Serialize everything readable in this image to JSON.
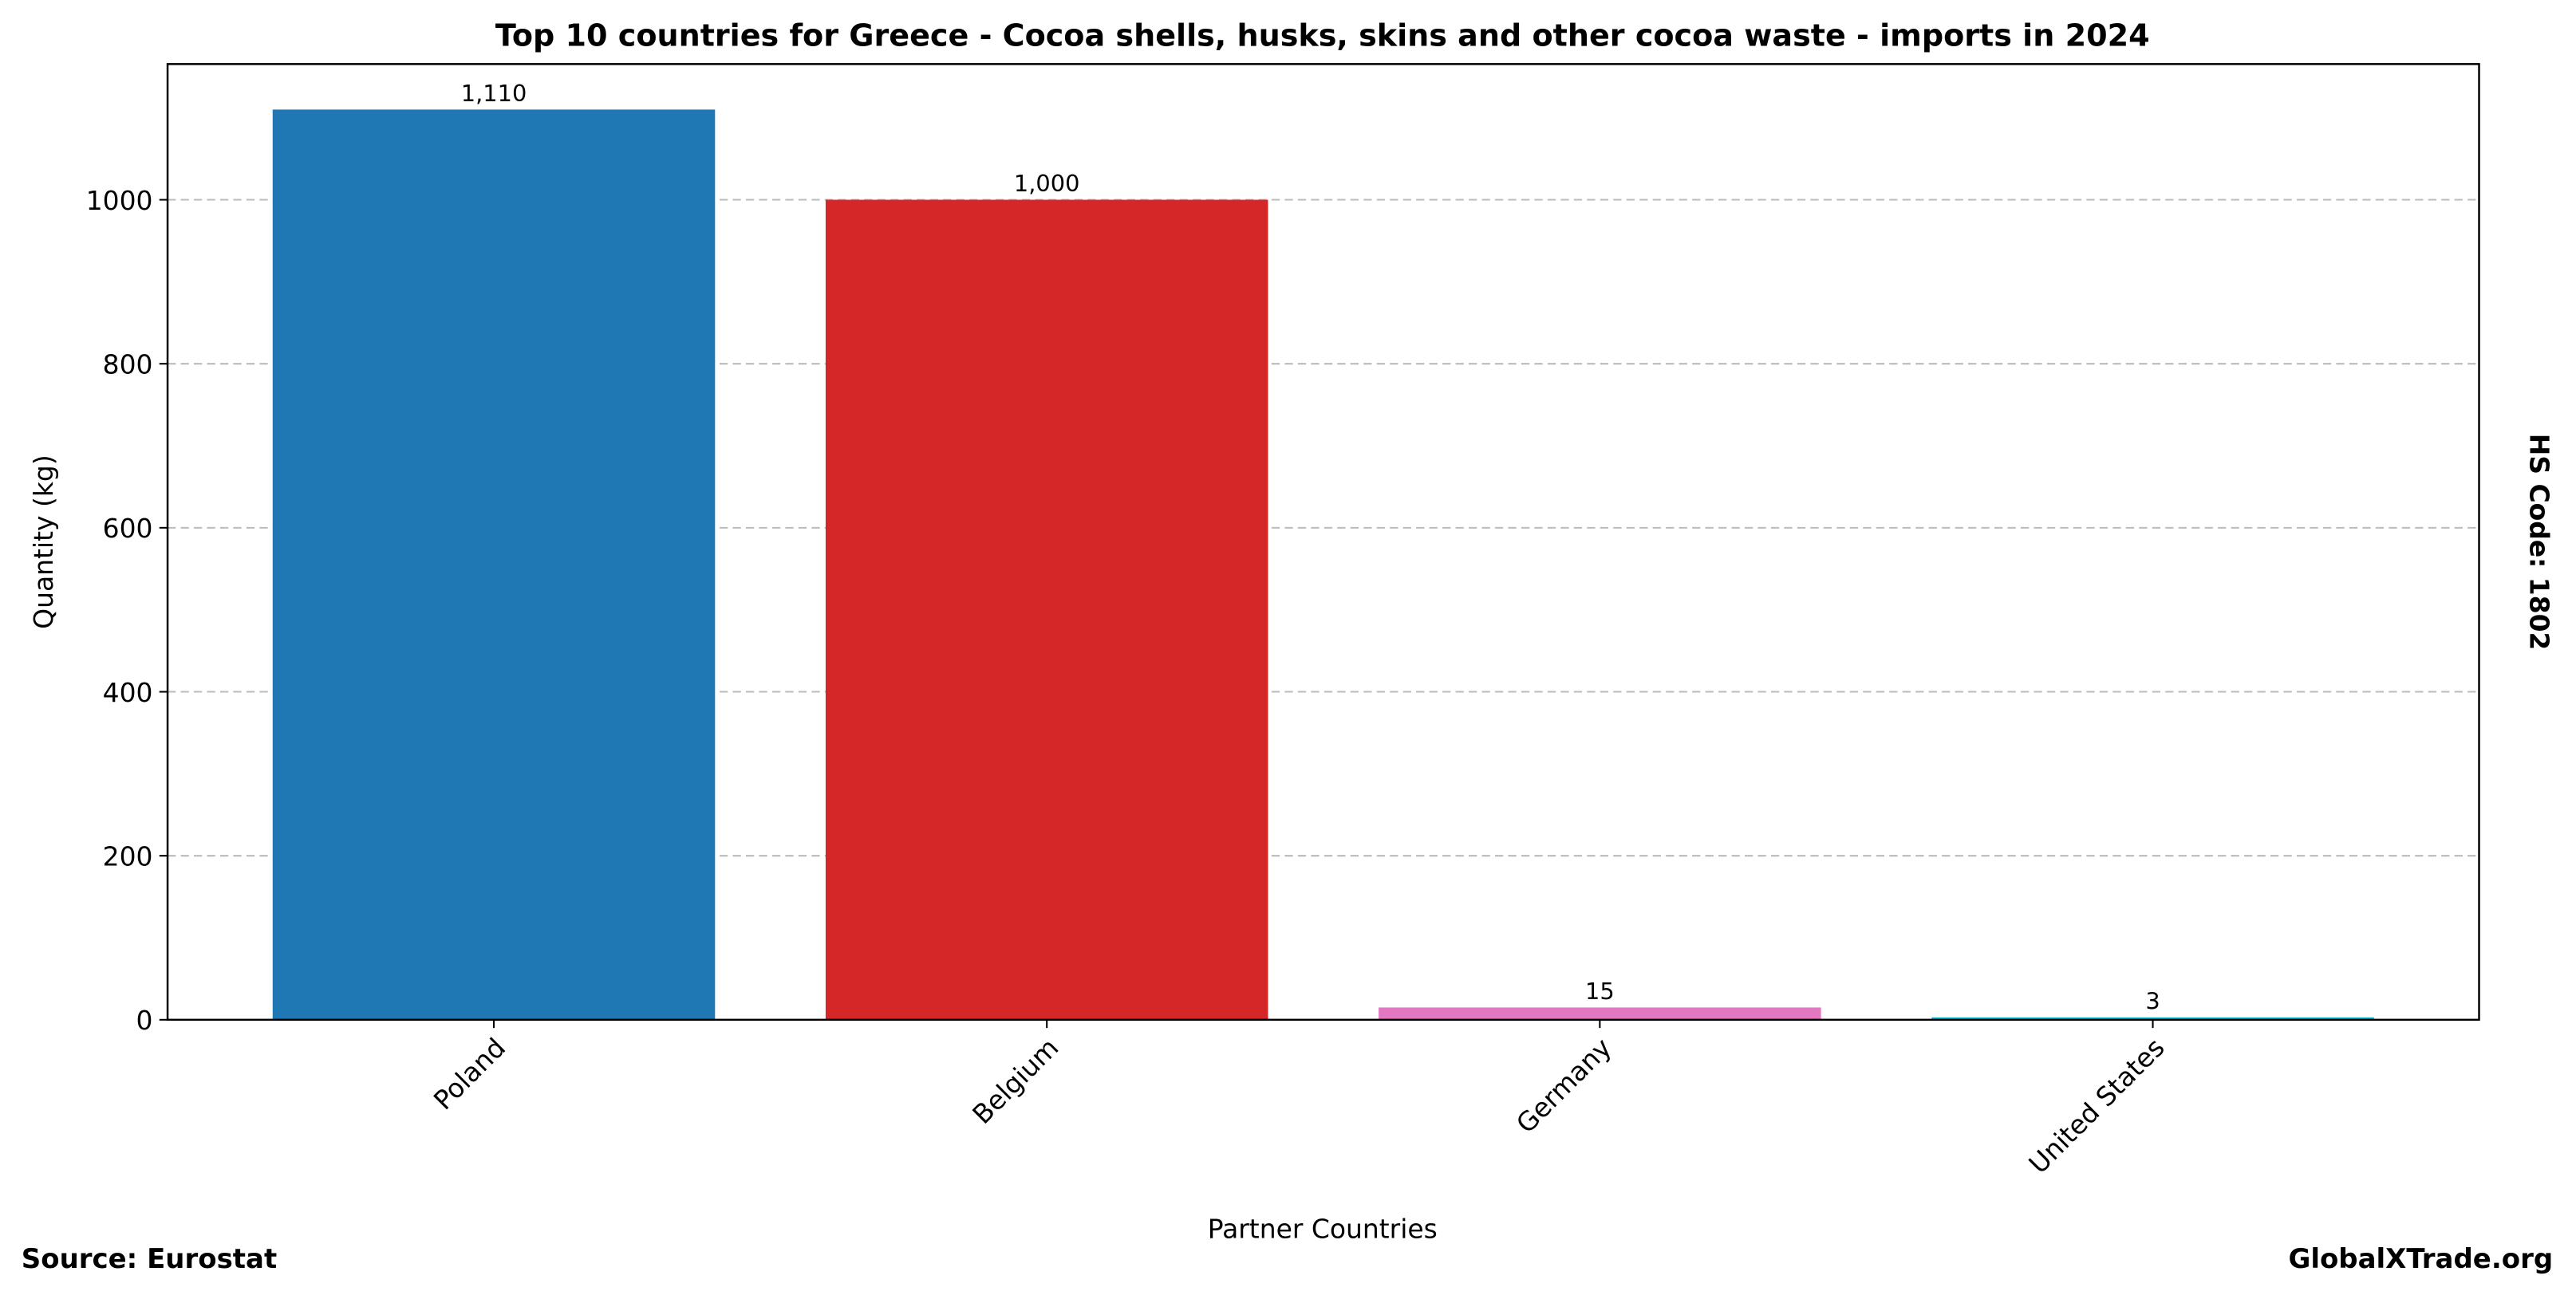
{
  "chart_data": {
    "type": "bar",
    "title": "Top 10 countries for Greece - Cocoa shells, husks, skins and other cocoa waste - imports in 2024",
    "x_label": "Partner Countries",
    "y_label": "Quantity (kg)",
    "side_label": "HS Code: 1802",
    "source": "Source: Eurostat",
    "site": "GlobalXTrade.org",
    "categories": [
      "Poland",
      "Belgium",
      "Germany",
      "United States"
    ],
    "values": [
      1110,
      1000,
      15,
      3
    ],
    "value_labels": [
      "1,110",
      "1,000",
      "15",
      "3"
    ],
    "colors": [
      "#1f77b4",
      "#d62728",
      "#e377c2",
      "#17becf"
    ],
    "ylim": [
      0,
      1165.5
    ],
    "yticks": [
      0,
      200,
      400,
      600,
      800,
      1000
    ],
    "grid": true
  }
}
